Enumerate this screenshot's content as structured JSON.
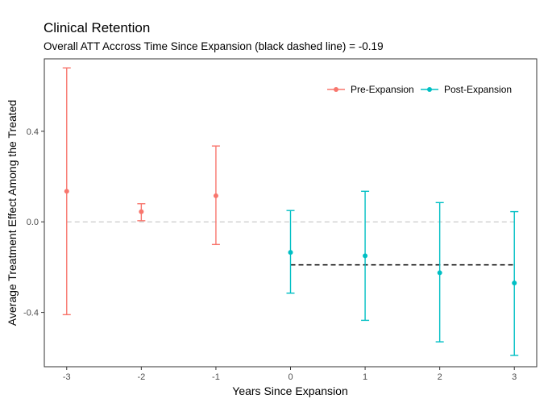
{
  "chart_data": {
    "type": "scatter",
    "title": "Clinical Retention",
    "subtitle": "Overall ATT Accross Time Since Expansion (black dashed line) = -0.19",
    "xlabel": "Years Since Expansion",
    "ylabel": "Average Treatment Effect Among the Treated",
    "xlim": [
      -3.3,
      3.3
    ],
    "ylim": [
      -0.64,
      0.72
    ],
    "x_ticks": [
      -3,
      -2,
      -1,
      0,
      1,
      2,
      3
    ],
    "x_tick_labels": [
      "-3",
      "-2",
      "-1",
      "0",
      "1",
      "2",
      "3"
    ],
    "y_ticks": [
      -0.4,
      0.0,
      0.4
    ],
    "y_tick_labels": [
      "-0.4",
      "0.0",
      "0.4"
    ],
    "reference_line": {
      "y": 0.0,
      "color": "#bdbdbd",
      "style": "dashed"
    },
    "overall_att": {
      "y": -0.19,
      "x_from": 0,
      "x_to": 3,
      "color": "#000000",
      "style": "dashed"
    },
    "legend_position": "top-right",
    "series": [
      {
        "name": "Pre-Expansion",
        "color": "#F8766D",
        "x": [
          -3,
          -2,
          -1
        ],
        "y": [
          0.135,
          0.045,
          0.115
        ],
        "lower": [
          -0.41,
          0.005,
          -0.1
        ],
        "upper": [
          0.68,
          0.08,
          0.335
        ]
      },
      {
        "name": "Post-Expansion",
        "color": "#00BFC4",
        "x": [
          0,
          1,
          2,
          3
        ],
        "y": [
          -0.135,
          -0.15,
          -0.225,
          -0.27
        ],
        "lower": [
          -0.315,
          -0.435,
          -0.53,
          -0.59
        ],
        "upper": [
          0.05,
          0.135,
          0.085,
          0.045
        ]
      }
    ]
  }
}
